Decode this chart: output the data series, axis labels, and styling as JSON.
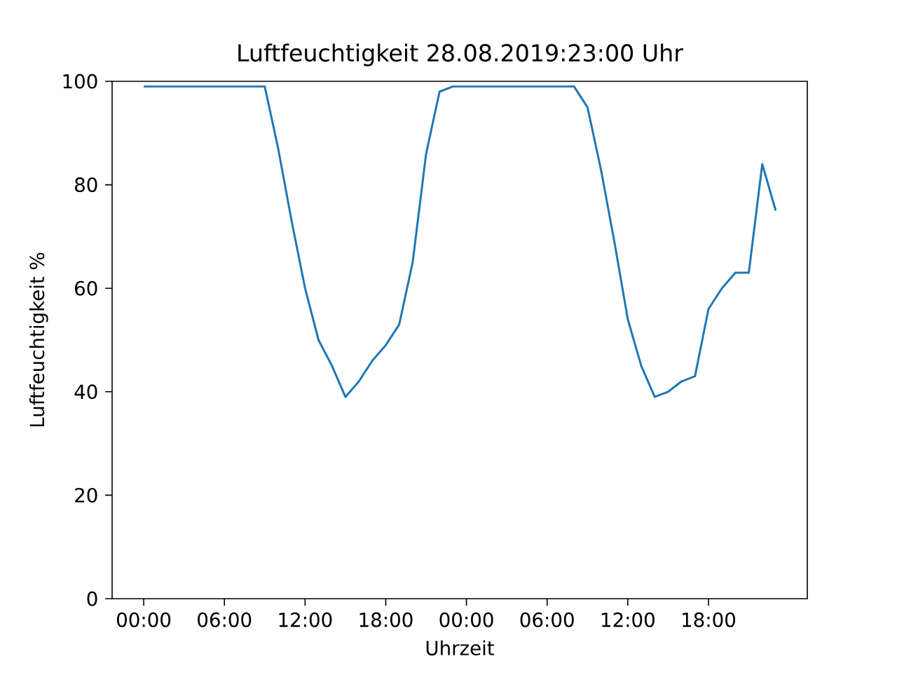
{
  "chart_data": {
    "type": "line",
    "title": "Luftfeuchtigkeit 28.08.2019:23:00  Uhr",
    "xlabel": "Uhrzeit",
    "ylabel": "Luftfeuchtigkeit %",
    "x": [
      "2019-08-27T00:00",
      "2019-08-27T01:00",
      "2019-08-27T02:00",
      "2019-08-27T03:00",
      "2019-08-27T04:00",
      "2019-08-27T05:00",
      "2019-08-27T06:00",
      "2019-08-27T07:00",
      "2019-08-27T08:00",
      "2019-08-27T09:00",
      "2019-08-27T10:00",
      "2019-08-27T11:00",
      "2019-08-27T12:00",
      "2019-08-27T13:00",
      "2019-08-27T14:00",
      "2019-08-27T15:00",
      "2019-08-27T16:00",
      "2019-08-27T17:00",
      "2019-08-27T18:00",
      "2019-08-27T19:00",
      "2019-08-27T20:00",
      "2019-08-27T21:00",
      "2019-08-27T22:00",
      "2019-08-27T23:00",
      "2019-08-28T00:00",
      "2019-08-28T01:00",
      "2019-08-28T02:00",
      "2019-08-28T03:00",
      "2019-08-28T04:00",
      "2019-08-28T05:00",
      "2019-08-28T06:00",
      "2019-08-28T07:00",
      "2019-08-28T08:00",
      "2019-08-28T09:00",
      "2019-08-28T10:00",
      "2019-08-28T11:00",
      "2019-08-28T12:00",
      "2019-08-28T13:00",
      "2019-08-28T14:00",
      "2019-08-28T15:00",
      "2019-08-28T16:00",
      "2019-08-28T17:00",
      "2019-08-28T18:00",
      "2019-08-28T19:00",
      "2019-08-28T20:00",
      "2019-08-28T21:00",
      "2019-08-28T22:00",
      "2019-08-28T23:00"
    ],
    "series": [
      {
        "color": "#1f77b4",
        "values": [
          99,
          99,
          99,
          99,
          99,
          99,
          99,
          99,
          99,
          99,
          87,
          73,
          60,
          50,
          45,
          39,
          42,
          46,
          49,
          53,
          65,
          86,
          98,
          99,
          99,
          99,
          99,
          99,
          99,
          99,
          99,
          99,
          99,
          95,
          83,
          69,
          54,
          45,
          39,
          40,
          42,
          43,
          56,
          60,
          63,
          63,
          84,
          75
        ]
      }
    ],
    "xlim": [
      "2019-08-26T21:39",
      "2019-08-29T01:21"
    ],
    "ylim": [
      0,
      100
    ],
    "xticks": [
      {
        "value": "2019-08-27T00:00",
        "label": "00:00"
      },
      {
        "value": "2019-08-27T06:00",
        "label": "06:00"
      },
      {
        "value": "2019-08-27T12:00",
        "label": "12:00"
      },
      {
        "value": "2019-08-27T18:00",
        "label": "18:00"
      },
      {
        "value": "2019-08-28T00:00",
        "label": "00:00"
      },
      {
        "value": "2019-08-28T06:00",
        "label": "06:00"
      },
      {
        "value": "2019-08-28T12:00",
        "label": "12:00"
      },
      {
        "value": "2019-08-28T18:00",
        "label": "18:00"
      }
    ],
    "yticks": [
      0,
      20,
      40,
      60,
      80,
      100
    ],
    "marker": "none",
    "line_style": "solid",
    "grid": false
  }
}
